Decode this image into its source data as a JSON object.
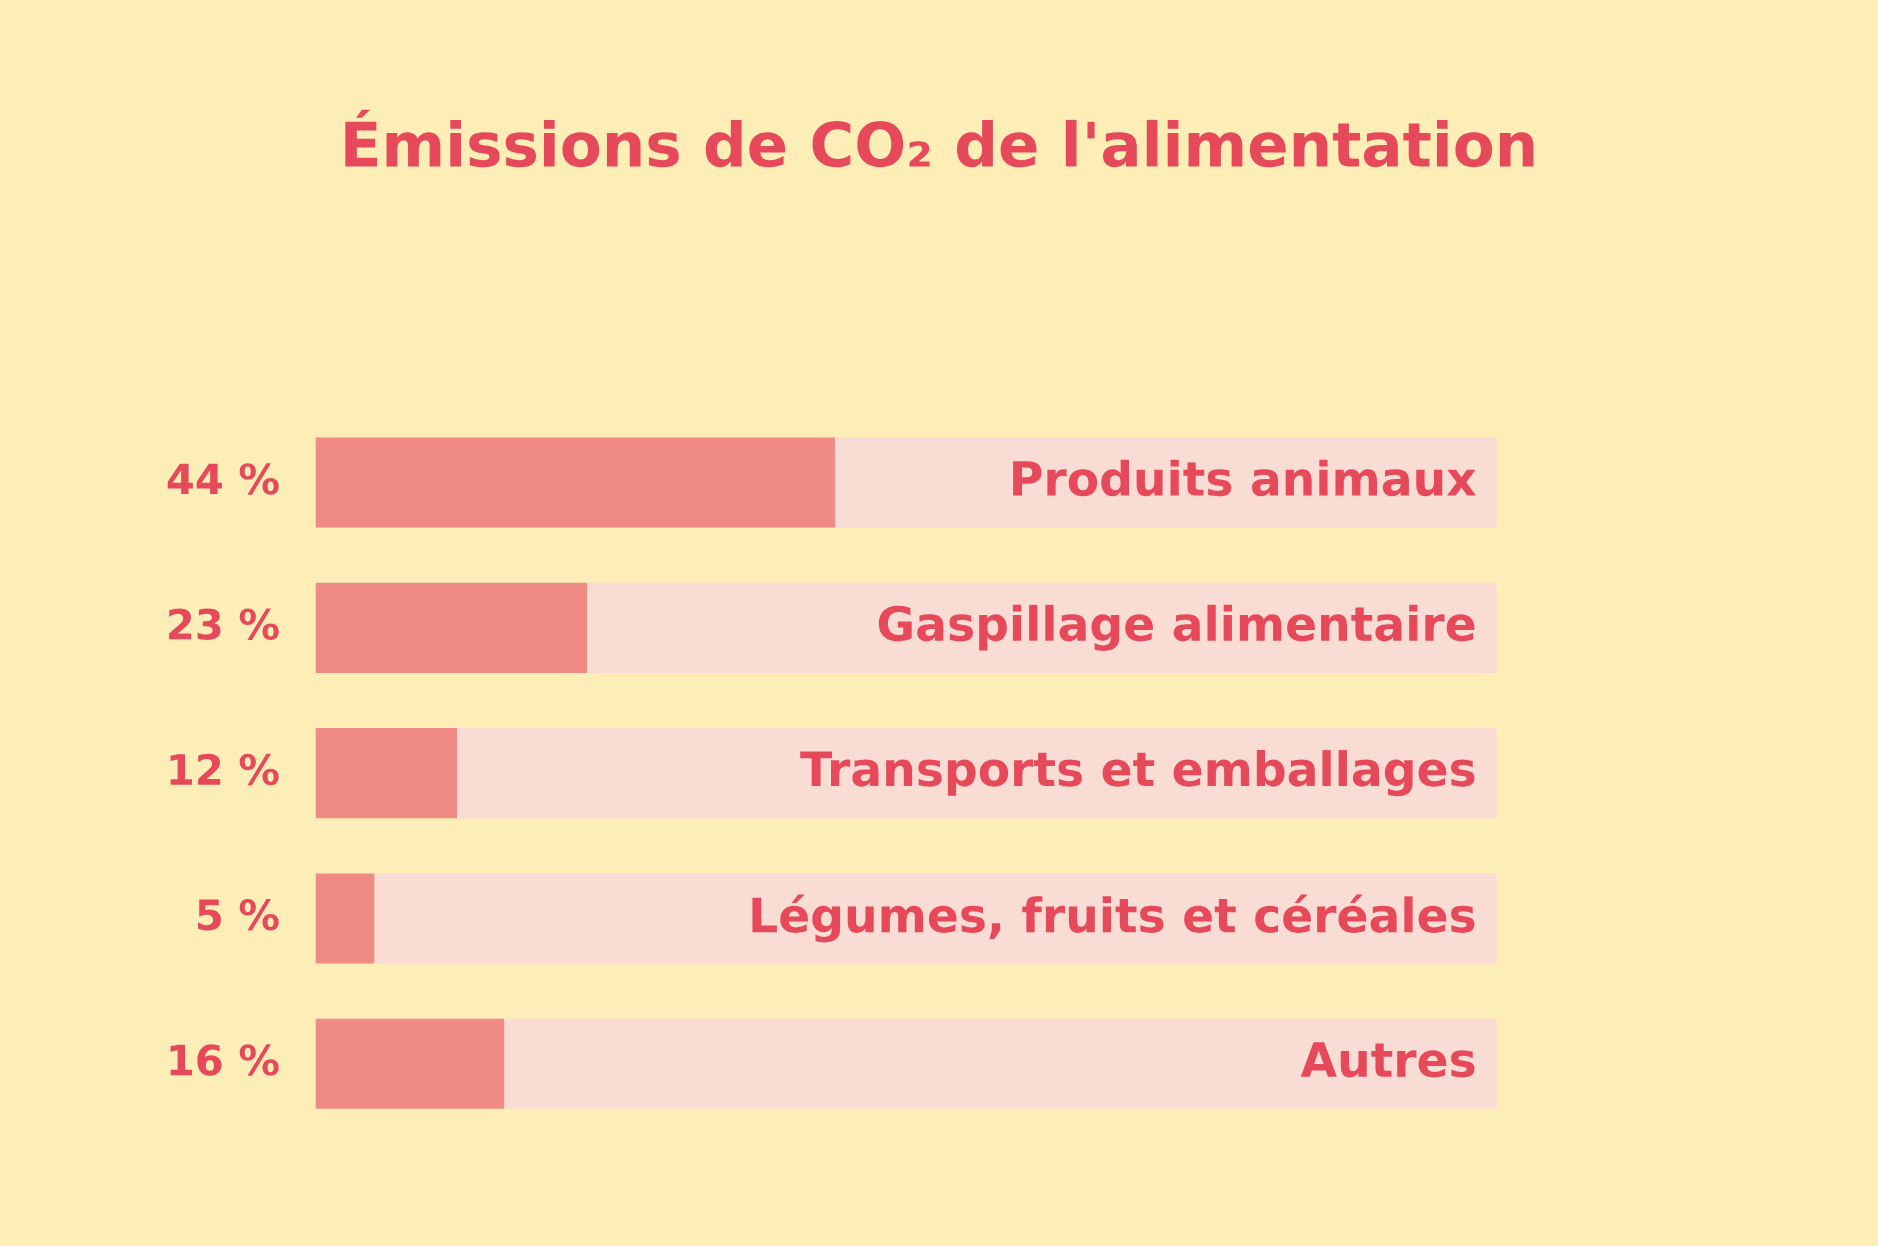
{
  "chart_data": {
    "type": "bar",
    "orientation": "horizontal",
    "stacked": true,
    "title": "Émissions de CO₂ de l'alimentation",
    "categories": [
      "Produits animaux",
      "Gaspillage alimentaire",
      "Transports et emballages",
      "Légumes, fruits et céréales",
      "Autres"
    ],
    "series": [
      {
        "color": "#f08a84",
        "values": [
          44,
          23,
          12,
          5,
          16
        ],
        "value_labels": [
          "44 %",
          "23 %",
          "12 %",
          "5 %",
          "16 %"
        ]
      },
      {
        "color": "#f9dcd4",
        "values": [
          56,
          77,
          88,
          95,
          84
        ]
      }
    ],
    "xlim": [
      0,
      100
    ]
  }
}
